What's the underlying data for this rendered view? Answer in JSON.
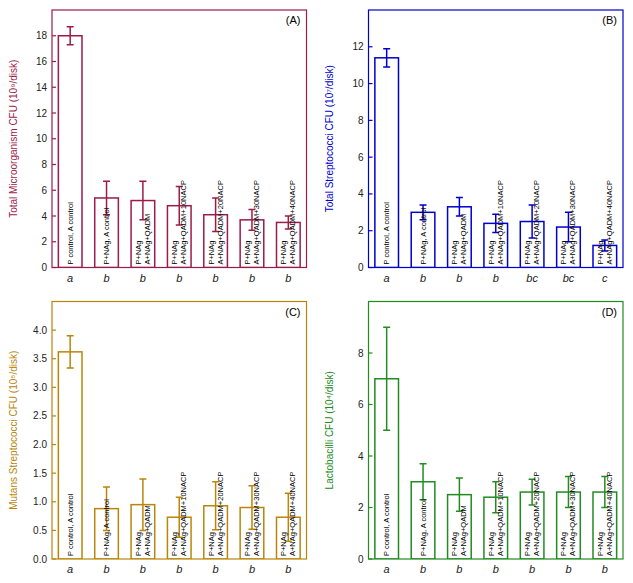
{
  "chart_data": [
    {
      "type": "bar",
      "title": "(A)",
      "ylabel": "Total Microorganism CFU (10⁹/disk)",
      "color": "#9B1B4B",
      "categories": [
        "a",
        "b",
        "b",
        "b",
        "b",
        "b",
        "b"
      ],
      "values": [
        18.0,
        5.4,
        5.2,
        4.8,
        4.1,
        3.7,
        3.5
      ],
      "errors": [
        0.7,
        1.3,
        1.5,
        1.5,
        1.3,
        0.8,
        0.5
      ],
      "annotations": [
        "P control, A control",
        "P+NAg, A control",
        "P+NAg\nA+NAg+QADM",
        "P+NAg\nA+NAg+QADM+10NACP",
        "P+NAg\nA+NAg+QADM+20NACP",
        "P+NAg\nA+NAg+QADM+30NACP",
        "P+NAg\nA+NAg+QADM+40NACP"
      ],
      "ylim": [
        0,
        20
      ],
      "yticks": [
        0,
        2,
        4,
        6,
        8,
        10,
        12,
        14,
        16,
        18
      ]
    },
    {
      "type": "bar",
      "title": "(B)",
      "ylabel": "Total Streptococci CFU (10⁷/disk)",
      "color": "#0000CC",
      "categories": [
        "a",
        "b",
        "b",
        "b",
        "bc",
        "bc",
        "c"
      ],
      "values": [
        11.4,
        3.0,
        3.3,
        2.4,
        2.5,
        2.2,
        1.2
      ],
      "errors": [
        0.5,
        0.4,
        0.5,
        0.5,
        0.9,
        0.8,
        0.3
      ],
      "annotations": [
        "P control, A control",
        "P+NAg, A control",
        "P+NAg\nA+NAg+QADM",
        "P+NAg\nA+NAg+QADM+10NACP",
        "P+NAg\nA+NAg+QADM+20NACP",
        "P+NAg\nA+NAg+QADM+30NACP",
        "P+NAg\nA+NAg+QADM+40NACP"
      ],
      "ylim": [
        0,
        14
      ],
      "yticks": [
        0,
        2,
        4,
        6,
        8,
        10,
        12
      ]
    },
    {
      "type": "bar",
      "title": "(C)",
      "ylabel": "Mutans Streptococci CFU (10⁵/disk)",
      "color": "#B8860B",
      "categories": [
        "a",
        "b",
        "b",
        "b",
        "b",
        "b",
        "b"
      ],
      "values": [
        3.62,
        0.88,
        0.95,
        0.73,
        0.93,
        0.9,
        0.73
      ],
      "errors": [
        0.28,
        0.38,
        0.45,
        0.35,
        0.42,
        0.38,
        0.42
      ],
      "annotations": [
        "P control, A control",
        "P+NAg, A control",
        "P+NAg\nA+NAg+QADM",
        "P+NAg\nA+NAg+QADM+10NACP",
        "P+NAg\nA+NAg+QADM+20NACP",
        "P+NAg\nA+NAg+QADM+30NACP",
        "P+NAg\nA+NAg+QADM+40NACP"
      ],
      "ylim": [
        0,
        4.5
      ],
      "yticks": [
        {
          "value": 0,
          "label": "0.0"
        },
        0.5,
        {
          "value": 1.0,
          "label": "1.0"
        },
        1.5,
        {
          "value": 2.0,
          "label": "2.0"
        },
        2.5,
        {
          "value": 3.0,
          "label": "3.0"
        },
        3.5,
        {
          "value": 4.0,
          "label": "4.0"
        }
      ]
    },
    {
      "type": "bar",
      "title": "(D)",
      "ylabel": "Lactobacilli CFU (10⁴/disk)",
      "color": "#228B22",
      "categories": [
        "a",
        "b",
        "b",
        "b",
        "b",
        "b",
        "b"
      ],
      "values": [
        7.0,
        3.0,
        2.5,
        2.4,
        2.6,
        2.6,
        2.6
      ],
      "errors": [
        2.0,
        0.7,
        0.65,
        0.6,
        0.5,
        0.6,
        0.6
      ],
      "annotations": [
        "P control, A control",
        "P+NAg, A control",
        "P+NAg\nA+NAg+QADM",
        "P+NAg\nA+NAg+QADM+10NACP",
        "P+NAg\nA+NAg+QADM+20NACP",
        "P+NAg\nA+NAg+QADM+30NACP",
        "P+NAg\nA+NAg+QADM+40NACP"
      ],
      "ylim": [
        0,
        10
      ],
      "yticks": [
        0,
        2,
        4,
        6,
        8
      ]
    }
  ]
}
